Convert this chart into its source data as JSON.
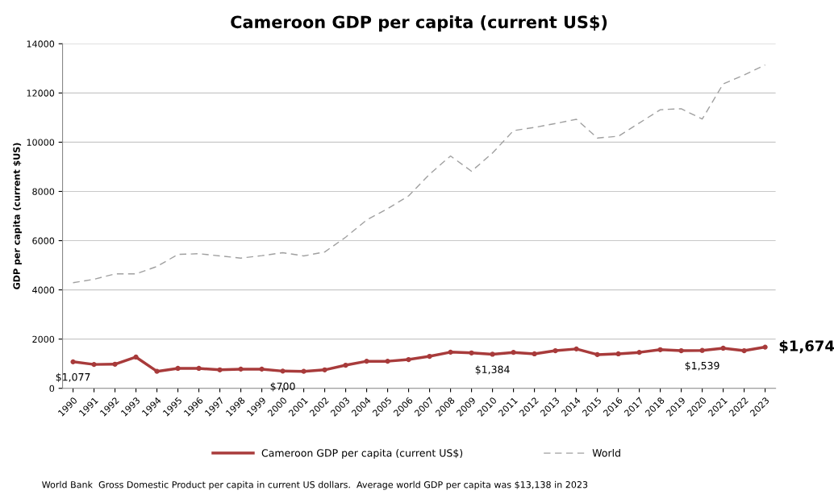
{
  "chart_data": {
    "type": "line",
    "title": "Cameroon GDP per capita (current US$)",
    "ylabel": "GDP per capita (current $US)",
    "categories": [
      "1990",
      "1991",
      "1992",
      "1993",
      "1994",
      "1995",
      "1996",
      "1997",
      "1998",
      "1999",
      "2000",
      "2001",
      "2002",
      "2003",
      "2004",
      "2005",
      "2006",
      "2007",
      "2008",
      "2009",
      "2010",
      "2011",
      "2012",
      "2013",
      "2014",
      "2015",
      "2016",
      "2017",
      "2018",
      "2019",
      "2020",
      "2021",
      "2022",
      "2023"
    ],
    "series": [
      {
        "name": "Cameroon GDP per capita (current US$)",
        "color": "#a83b3b",
        "marker": "circle",
        "line_style": "solid",
        "values": [
          1077,
          970,
          980,
          1270,
          690,
          810,
          810,
          750,
          780,
          780,
          700,
          690,
          750,
          940,
          1100,
          1100,
          1170,
          1300,
          1470,
          1440,
          1384,
          1460,
          1400,
          1530,
          1600,
          1370,
          1400,
          1460,
          1570,
          1530,
          1539,
          1630,
          1530,
          1674
        ],
        "value_labels": [
          "$1,077",
          null,
          null,
          null,
          null,
          null,
          null,
          null,
          null,
          null,
          "$700",
          null,
          null,
          null,
          null,
          null,
          null,
          null,
          null,
          null,
          "$1,384",
          null,
          null,
          null,
          null,
          null,
          null,
          null,
          null,
          null,
          "$1,539",
          null,
          null,
          "$1,674"
        ]
      },
      {
        "name": "World",
        "color": "#a0a0a0",
        "marker": "none",
        "line_style": "dashed",
        "values": [
          4290,
          4430,
          4650,
          4650,
          4950,
          5440,
          5470,
          5380,
          5290,
          5390,
          5510,
          5380,
          5540,
          6140,
          6840,
          7300,
          7820,
          8700,
          9440,
          8820,
          9560,
          10470,
          10600,
          10760,
          10930,
          10170,
          10240,
          10780,
          11320,
          11360,
          10940,
          12370,
          12730,
          13140
        ]
      }
    ],
    "ylim": [
      0,
      14000
    ],
    "yticks": [
      0,
      2000,
      4000,
      6000,
      8000,
      10000,
      12000,
      14000
    ],
    "grid": "y",
    "legend": "bottom",
    "annotations": [
      "World Bank  Gross Domestic Product per capita in current US dollars.  Average world GDP per capita was $13,138 in 2023"
    ]
  }
}
